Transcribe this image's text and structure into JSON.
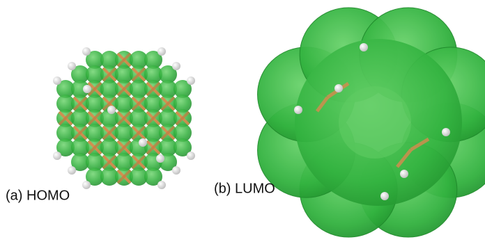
{
  "panels": [
    {
      "label": "(a) HOMO"
    },
    {
      "label": "(b) LUMO"
    }
  ]
}
